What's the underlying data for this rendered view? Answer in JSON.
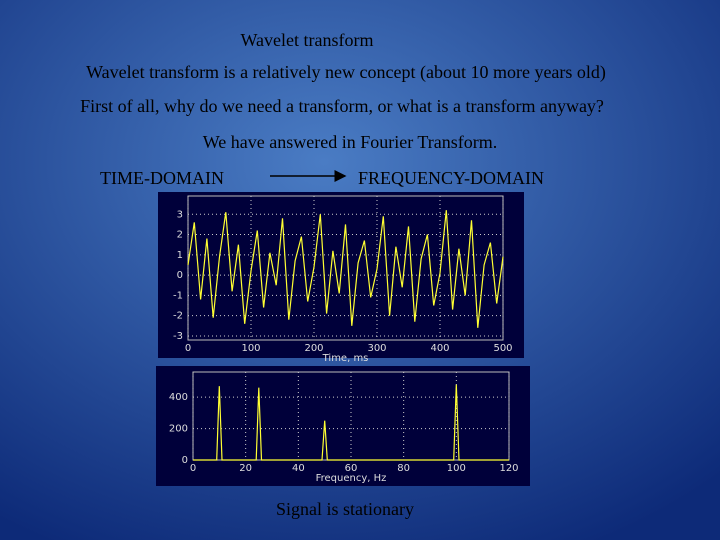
{
  "title": "Wavelet transform",
  "lines": [
    "Wavelet transform is a relatively new concept (about 10 more years old)",
    "First of all, why do we need a transform, or what is a transform anyway?",
    "We have answered in Fourier Transform."
  ],
  "time_domain": "TIME-DOMAIN",
  "frequency_domain": "FREQUENCY-DOMAIN",
  "caption": "Signal is stationary",
  "chart_data": [
    {
      "type": "line",
      "xlabel": "Time, ms",
      "color": "#ffff33",
      "grid": true,
      "x": [
        0,
        10,
        20,
        30,
        40,
        50,
        60,
        70,
        80,
        90,
        100,
        110,
        120,
        130,
        140,
        150,
        160,
        170,
        180,
        190,
        200,
        210,
        220,
        230,
        240,
        250,
        260,
        270,
        280,
        290,
        300,
        310,
        320,
        330,
        340,
        350,
        360,
        370,
        380,
        390,
        400,
        410,
        420,
        430,
        440,
        450,
        460,
        470,
        480,
        490,
        500
      ],
      "values": [
        0.5,
        2.6,
        -1.2,
        1.8,
        -2.1,
        0.9,
        3.1,
        -0.8,
        1.5,
        -2.4,
        0.2,
        2.2,
        -1.6,
        1.1,
        -0.5,
        2.8,
        -2.2,
        0.7,
        1.9,
        -1.3,
        0.4,
        3.0,
        -1.9,
        1.2,
        -0.9,
        2.5,
        -2.5,
        0.6,
        1.7,
        -1.1,
        0.3,
        2.9,
        -2.0,
        1.4,
        -0.6,
        2.4,
        -2.3,
        0.8,
        2.0,
        -1.5,
        0.1,
        3.2,
        -1.7,
        1.3,
        -1.0,
        2.7,
        -2.6,
        0.5,
        1.6,
        -1.4,
        0.9
      ],
      "xlim": [
        0,
        500
      ],
      "ylim": [
        -3.2,
        3.9
      ],
      "xticks": [
        0,
        100,
        200,
        300,
        400,
        500
      ],
      "yticks": [
        -3,
        -2,
        -1,
        0,
        1,
        2,
        3
      ]
    },
    {
      "type": "line",
      "xlabel": "Frequency, Hz",
      "color": "#ffff33",
      "grid": true,
      "x": [
        0,
        9,
        10,
        11,
        24,
        25,
        26,
        49,
        50,
        51,
        99,
        100,
        101,
        120
      ],
      "values": [
        0,
        0,
        470,
        0,
        0,
        460,
        0,
        0,
        250,
        0,
        0,
        480,
        0,
        0
      ],
      "xlim": [
        0,
        120
      ],
      "ylim": [
        0,
        560
      ],
      "xticks": [
        0,
        20,
        40,
        60,
        80,
        100,
        120
      ],
      "yticks": [
        0,
        200,
        400
      ]
    }
  ]
}
